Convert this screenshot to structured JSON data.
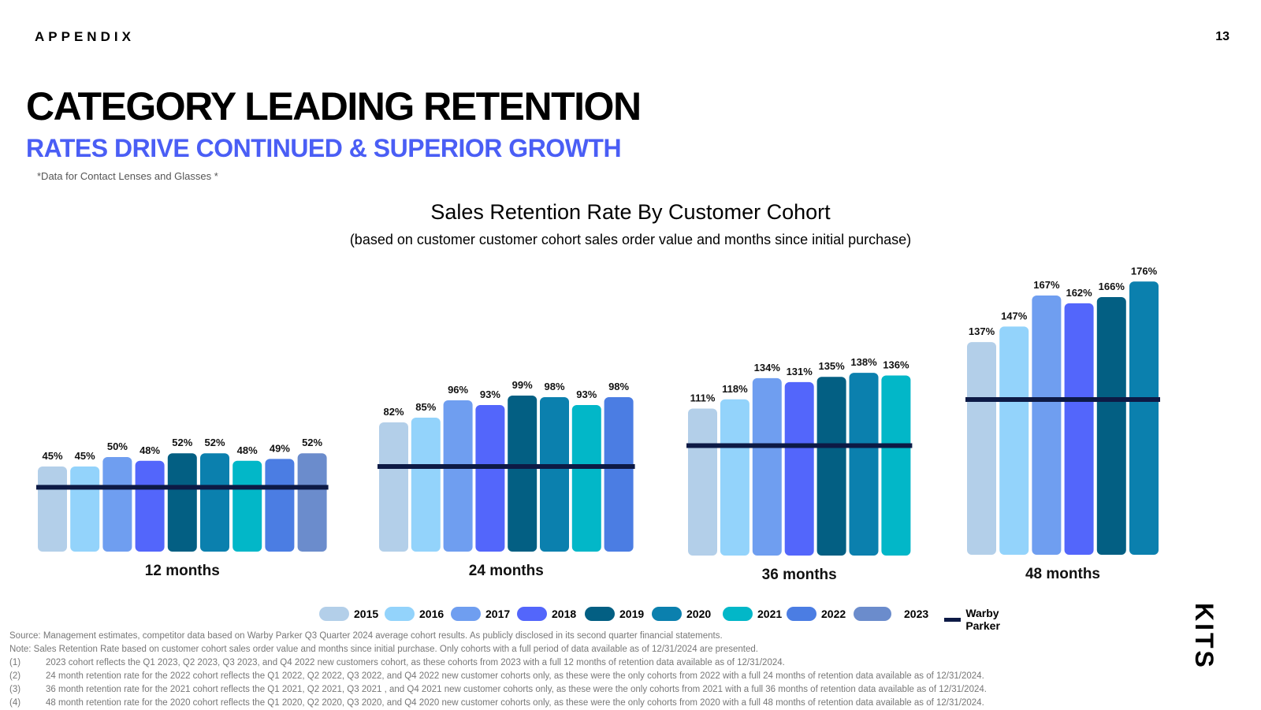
{
  "header": {
    "section": "APPENDIX",
    "page_number": "13"
  },
  "title": "CATEGORY LEADING RETENTION",
  "subtitle": "RATES DRIVE CONTINUED & SUPERIOR GROWTH",
  "data_note": "*Data for Contact Lenses and Glasses *",
  "logo_text": "KITS",
  "chart_data": {
    "type": "bar",
    "title": "Sales Retention Rate By Customer Cohort",
    "subtitle": "(based on customer customer cohort sales order value and months since initial purchase)",
    "unit": "%",
    "groups": [
      {
        "label": "12 months",
        "series": [
          "2015",
          "2016",
          "2017",
          "2018",
          "2019",
          "2020",
          "2021",
          "2022",
          "2023"
        ],
        "values": [
          45,
          45,
          50,
          48,
          52,
          52,
          48,
          49,
          52
        ],
        "benchmark": 34
      },
      {
        "label": "24 months",
        "series": [
          "2015",
          "2016",
          "2017",
          "2018",
          "2019",
          "2020",
          "2021",
          "2022"
        ],
        "values": [
          82,
          85,
          96,
          93,
          99,
          98,
          93,
          98
        ],
        "benchmark": 54
      },
      {
        "label": "36 months",
        "series": [
          "2015",
          "2016",
          "2017",
          "2018",
          "2019",
          "2020",
          "2021"
        ],
        "values": [
          111,
          118,
          134,
          131,
          135,
          138,
          136
        ],
        "benchmark": 83
      },
      {
        "label": "48 months",
        "series": [
          "2015",
          "2016",
          "2017",
          "2018",
          "2019",
          "2020"
        ],
        "values": [
          137,
          147,
          167,
          162,
          166,
          176
        ],
        "benchmark": 100
      }
    ],
    "legend": [
      {
        "name": "2015",
        "color": "#b3cfe9"
      },
      {
        "name": "2016",
        "color": "#93d3fb"
      },
      {
        "name": "2017",
        "color": "#6f9ef0"
      },
      {
        "name": "2018",
        "color": "#5366fb"
      },
      {
        "name": "2019",
        "color": "#035f83"
      },
      {
        "name": "2020",
        "color": "#0b80ae"
      },
      {
        "name": "2021",
        "color": "#02b7c8"
      },
      {
        "name": "2022",
        "color": "#4b7de3"
      },
      {
        "name": "2023",
        "color": "#6b8ccc"
      }
    ],
    "benchmark_label": "Warby Parker",
    "benchmark_color": "#0d1a45"
  },
  "footnotes": {
    "source": "Source: Management estimates, competitor data based on Warby Parker Q3 Quarter 2024 average cohort results. As publicly disclosed in its second quarter financial statements.",
    "note": "Note: Sales Retention Rate based on customer cohort sales order value and months since initial purchase. Only cohorts with a full period of data available as of 12/31/2024 are presented.",
    "items": [
      {
        "num": "(1)",
        "text": "2023 cohort reflects the Q1 2023, Q2 2023, Q3 2023, and Q4 2022 new customers cohort, as these cohorts from 2023 with a full 12 months of retention data available as of 12/31/2024."
      },
      {
        "num": "(2)",
        "text": "24 month retention rate for the 2022 cohort reflects the Q1 2022, Q2 2022, Q3 2022, and Q4 2022 new customer cohorts only, as these were the only cohorts from 2022 with a full 24 months of retention data available as of 12/31/2024."
      },
      {
        "num": "(3)",
        "text": "36 month retention rate for the 2021 cohort reflects the Q1 2021, Q2 2021,  Q3 2021 , and Q4 2021 new customer cohorts only, as these were the only cohorts from 2021 with a full 36 months of retention data available as of 12/31/2024."
      },
      {
        "num": "(4)",
        "text": "48 month retention rate for the 2020 cohort reflects the Q1 2020, Q2 2020, Q3 2020, and Q4 2020  new customer cohorts only, as these were the only cohorts from 2020 with a full 48 months of retention data available as of 12/31/2024."
      }
    ]
  }
}
